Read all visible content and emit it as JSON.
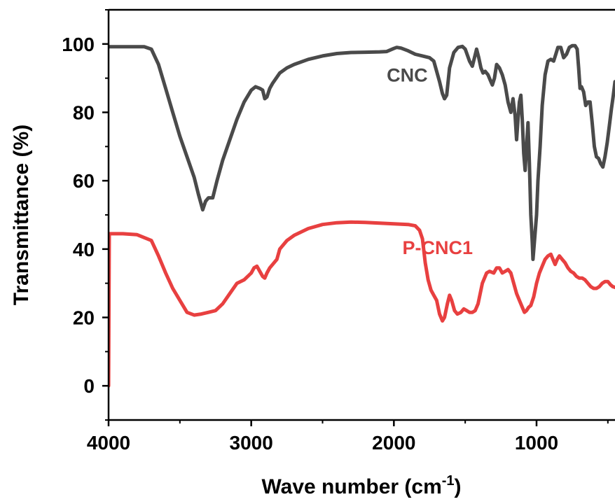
{
  "chart_data": {
    "type": "line",
    "xlabel": "Wave number (cm",
    "xlabel_sup": "-1",
    "xlabel_suffix": ")",
    "ylabel": "Transmittance (%)",
    "x_range": [
      4000,
      450
    ],
    "y_range": [
      -10,
      110
    ],
    "x_ticks": [
      "4000",
      "3000",
      "2000",
      "1000"
    ],
    "x_tick_values": [
      4000,
      3000,
      2000,
      1000
    ],
    "y_ticks": [
      "0",
      "20",
      "40",
      "60",
      "80",
      "100"
    ],
    "y_tick_values": [
      0,
      20,
      40,
      60,
      80,
      100
    ],
    "series": [
      {
        "name": "CNC",
        "color": "#4a4a4a",
        "points": [
          [
            4000,
            99.2
          ],
          [
            3750,
            99.2
          ],
          [
            3700,
            98.5
          ],
          [
            3650,
            94
          ],
          [
            3600,
            87
          ],
          [
            3550,
            80
          ],
          [
            3500,
            73
          ],
          [
            3450,
            67
          ],
          [
            3400,
            61
          ],
          [
            3370,
            56
          ],
          [
            3340,
            51.5
          ],
          [
            3320,
            54
          ],
          [
            3300,
            55
          ],
          [
            3270,
            55
          ],
          [
            3240,
            60
          ],
          [
            3200,
            66
          ],
          [
            3150,
            72
          ],
          [
            3100,
            78
          ],
          [
            3050,
            83
          ],
          [
            3000,
            86.5
          ],
          [
            2970,
            87.5
          ],
          [
            2940,
            87
          ],
          [
            2920,
            86.5
          ],
          [
            2905,
            84
          ],
          [
            2890,
            84.5
          ],
          [
            2870,
            87
          ],
          [
            2850,
            88.5
          ],
          [
            2800,
            91.5
          ],
          [
            2750,
            93
          ],
          [
            2700,
            94
          ],
          [
            2600,
            95.5
          ],
          [
            2500,
            96.5
          ],
          [
            2400,
            97.2
          ],
          [
            2300,
            97.5
          ],
          [
            2200,
            97.6
          ],
          [
            2100,
            97.7
          ],
          [
            2050,
            97.8
          ],
          [
            2000,
            98.7
          ],
          [
            1980,
            99
          ],
          [
            1950,
            98.8
          ],
          [
            1900,
            98
          ],
          [
            1850,
            97
          ],
          [
            1800,
            96.5
          ],
          [
            1750,
            96
          ],
          [
            1720,
            95
          ],
          [
            1700,
            92
          ],
          [
            1680,
            89
          ],
          [
            1660,
            85.5
          ],
          [
            1645,
            84
          ],
          [
            1630,
            85
          ],
          [
            1610,
            93
          ],
          [
            1580,
            97.5
          ],
          [
            1550,
            99
          ],
          [
            1520,
            99.3
          ],
          [
            1500,
            98.5
          ],
          [
            1470,
            95
          ],
          [
            1450,
            93.5
          ],
          [
            1435,
            96
          ],
          [
            1420,
            98.5
          ],
          [
            1405,
            96
          ],
          [
            1390,
            93
          ],
          [
            1375,
            91.5
          ],
          [
            1360,
            92
          ],
          [
            1340,
            91
          ],
          [
            1320,
            89
          ],
          [
            1310,
            88
          ],
          [
            1295,
            90
          ],
          [
            1280,
            94
          ],
          [
            1260,
            93
          ],
          [
            1240,
            91
          ],
          [
            1220,
            88
          ],
          [
            1200,
            83
          ],
          [
            1180,
            80
          ],
          [
            1165,
            84
          ],
          [
            1150,
            79
          ],
          [
            1140,
            72
          ],
          [
            1130,
            78
          ],
          [
            1120,
            83
          ],
          [
            1110,
            85
          ],
          [
            1100,
            78
          ],
          [
            1090,
            68
          ],
          [
            1080,
            63
          ],
          [
            1070,
            70
          ],
          [
            1060,
            77
          ],
          [
            1050,
            65
          ],
          [
            1040,
            50
          ],
          [
            1030,
            42
          ],
          [
            1025,
            37
          ],
          [
            1015,
            42
          ],
          [
            1000,
            50
          ],
          [
            990,
            60
          ],
          [
            975,
            70
          ],
          [
            960,
            82
          ],
          [
            940,
            91
          ],
          [
            920,
            95
          ],
          [
            900,
            95.5
          ],
          [
            880,
            95
          ],
          [
            865,
            97
          ],
          [
            850,
            99
          ],
          [
            830,
            99
          ],
          [
            810,
            96
          ],
          [
            790,
            97
          ],
          [
            770,
            99
          ],
          [
            750,
            99.5
          ],
          [
            730,
            99.5
          ],
          [
            715,
            98.5
          ],
          [
            705,
            93
          ],
          [
            695,
            87
          ],
          [
            685,
            87.5
          ],
          [
            670,
            86
          ],
          [
            655,
            82
          ],
          [
            640,
            83
          ],
          [
            625,
            83
          ],
          [
            610,
            77
          ],
          [
            595,
            70
          ],
          [
            580,
            67
          ],
          [
            565,
            66.5
          ],
          [
            550,
            65
          ],
          [
            535,
            64
          ],
          [
            520,
            67
          ],
          [
            505,
            71
          ],
          [
            490,
            76
          ],
          [
            475,
            81
          ],
          [
            462,
            85
          ],
          [
            450,
            89
          ]
        ]
      },
      {
        "name": "P-CNC1",
        "color": "#e84040",
        "points": [
          [
            4000,
            0
          ],
          [
            3995,
            44.5
          ],
          [
            3900,
            44.5
          ],
          [
            3800,
            44.2
          ],
          [
            3700,
            42.5
          ],
          [
            3650,
            38
          ],
          [
            3600,
            33
          ],
          [
            3550,
            28.5
          ],
          [
            3500,
            25
          ],
          [
            3450,
            21.5
          ],
          [
            3400,
            20.7
          ],
          [
            3350,
            21
          ],
          [
            3300,
            21.5
          ],
          [
            3250,
            22
          ],
          [
            3200,
            24
          ],
          [
            3150,
            27
          ],
          [
            3100,
            30
          ],
          [
            3050,
            31
          ],
          [
            3000,
            33
          ],
          [
            2980,
            34.5
          ],
          [
            2960,
            35
          ],
          [
            2940,
            33.5
          ],
          [
            2920,
            32
          ],
          [
            2905,
            31.5
          ],
          [
            2890,
            33
          ],
          [
            2870,
            34.5
          ],
          [
            2850,
            35.5
          ],
          [
            2820,
            37
          ],
          [
            2800,
            40
          ],
          [
            2750,
            42.5
          ],
          [
            2700,
            44
          ],
          [
            2600,
            46
          ],
          [
            2500,
            47.2
          ],
          [
            2400,
            47.7
          ],
          [
            2300,
            47.9
          ],
          [
            2200,
            47.8
          ],
          [
            2100,
            47.6
          ],
          [
            2000,
            47.4
          ],
          [
            1900,
            47.2
          ],
          [
            1850,
            46.8
          ],
          [
            1820,
            45.5
          ],
          [
            1800,
            43
          ],
          [
            1780,
            36
          ],
          [
            1760,
            31
          ],
          [
            1740,
            28
          ],
          [
            1720,
            26.5
          ],
          [
            1700,
            25
          ],
          [
            1680,
            21
          ],
          [
            1660,
            19
          ],
          [
            1645,
            20
          ],
          [
            1625,
            24
          ],
          [
            1610,
            26.5
          ],
          [
            1595,
            25
          ],
          [
            1575,
            22
          ],
          [
            1555,
            21
          ],
          [
            1530,
            21.5
          ],
          [
            1510,
            22.5
          ],
          [
            1490,
            22
          ],
          [
            1470,
            21.5
          ],
          [
            1450,
            21.5
          ],
          [
            1430,
            22
          ],
          [
            1410,
            24
          ],
          [
            1380,
            30
          ],
          [
            1350,
            33
          ],
          [
            1330,
            33.5
          ],
          [
            1300,
            33
          ],
          [
            1280,
            34.5
          ],
          [
            1260,
            34.5
          ],
          [
            1240,
            33
          ],
          [
            1220,
            33.5
          ],
          [
            1200,
            34
          ],
          [
            1180,
            33
          ],
          [
            1160,
            30
          ],
          [
            1140,
            27
          ],
          [
            1120,
            25
          ],
          [
            1100,
            23
          ],
          [
            1085,
            21.5
          ],
          [
            1070,
            22
          ],
          [
            1055,
            23
          ],
          [
            1040,
            23.5
          ],
          [
            1020,
            26
          ],
          [
            1000,
            30
          ],
          [
            980,
            33
          ],
          [
            960,
            35
          ],
          [
            940,
            37
          ],
          [
            920,
            38
          ],
          [
            900,
            38.5
          ],
          [
            885,
            37
          ],
          [
            870,
            35.5
          ],
          [
            855,
            37
          ],
          [
            840,
            38
          ],
          [
            820,
            37
          ],
          [
            800,
            36
          ],
          [
            780,
            34.5
          ],
          [
            760,
            33.5
          ],
          [
            740,
            33
          ],
          [
            720,
            32
          ],
          [
            700,
            31.5
          ],
          [
            680,
            31.5
          ],
          [
            660,
            31
          ],
          [
            640,
            30
          ],
          [
            620,
            29
          ],
          [
            600,
            28.5
          ],
          [
            580,
            28.5
          ],
          [
            560,
            29
          ],
          [
            540,
            30
          ],
          [
            520,
            30.5
          ],
          [
            500,
            30.5
          ],
          [
            480,
            29.5
          ],
          [
            465,
            29
          ],
          [
            450,
            28.8
          ]
        ]
      }
    ],
    "annotations": [
      {
        "text": "CNC",
        "series": 0,
        "x": 2050,
        "y": 89
      },
      {
        "text": "P-CNC1",
        "series": 1,
        "x": 1940,
        "y": 38.5
      }
    ]
  }
}
